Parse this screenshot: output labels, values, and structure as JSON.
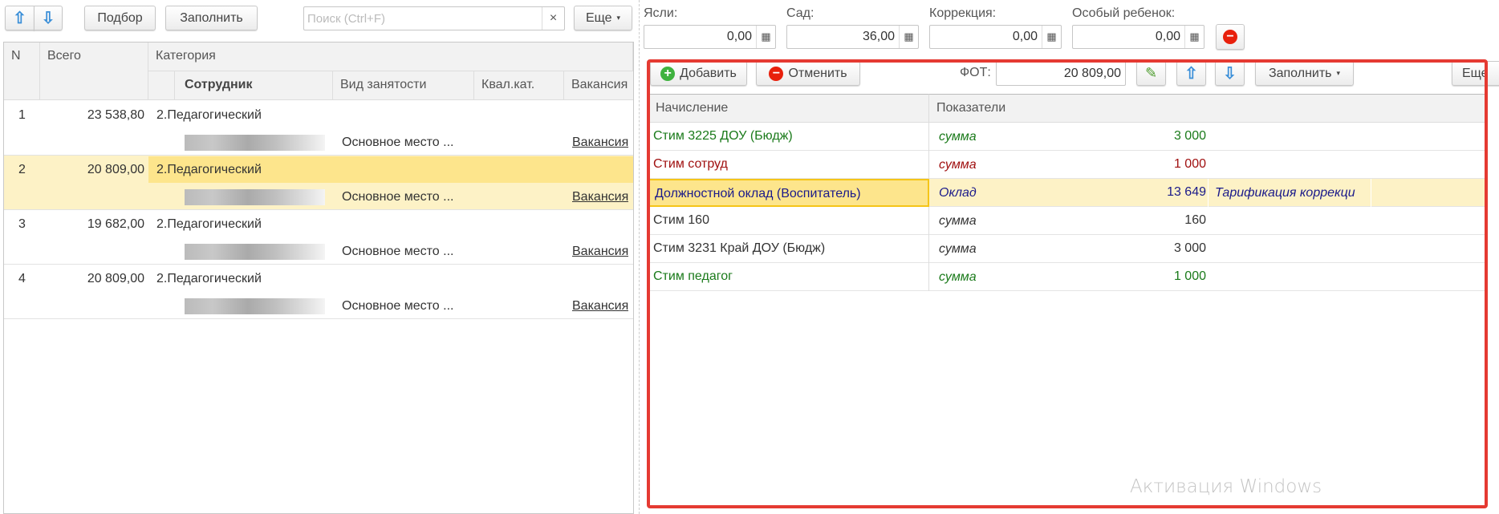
{
  "left": {
    "toolbar": {
      "pick": "Подбор",
      "fill": "Заполнить",
      "search_placeholder": "Поиск (Ctrl+F)",
      "clear": "×",
      "more": "Еще"
    },
    "columns": {
      "n": "N",
      "total": "Всего",
      "category": "Категория",
      "employee": "Сотрудник",
      "employment": "Вид занятости",
      "qual": "Квал.кат.",
      "vacancy": "Вакансия"
    },
    "rows": [
      {
        "n": "1",
        "total": "23 538,80",
        "category": "2.Педагогический",
        "employment": "Основное место ...",
        "vacancy": "Вакансия"
      },
      {
        "n": "2",
        "total": "20 809,00",
        "category": "2.Педагогический",
        "employment": "Основное место ...",
        "vacancy": "Вакансия",
        "selected": true
      },
      {
        "n": "3",
        "total": "19 682,00",
        "category": "2.Педагогический",
        "employment": "Основное место ...",
        "vacancy": "Вакансия"
      },
      {
        "n": "4",
        "total": "20 809,00",
        "category": "2.Педагогический",
        "employment": "Основное место ...",
        "vacancy": "Вакансия"
      }
    ]
  },
  "right": {
    "fields": [
      {
        "label": "Ясли:",
        "value": "0,00"
      },
      {
        "label": "Сад:",
        "value": "36,00"
      },
      {
        "label": "Коррекция:",
        "value": "0,00"
      },
      {
        "label": "Особый ребенок:",
        "value": "0,00"
      }
    ],
    "toolbar": {
      "add": "Добавить",
      "cancel": "Отменить",
      "fot_label": "ФОТ:",
      "fot_value": "20 809,00",
      "fill": "Заполнить",
      "more": "Еще"
    },
    "columns": {
      "accrual": "Начисление",
      "indicators": "Показатели"
    },
    "rows": [
      {
        "name": "Стим 3225 ДОУ (Бюдж)",
        "ind": "сумма",
        "value": "3 000",
        "extra": "",
        "color": "#1a7a1a"
      },
      {
        "name": "Стим сотруд",
        "ind": "сумма",
        "value": "1 000",
        "extra": "",
        "color": "#a01010"
      },
      {
        "name": "Должностной оклад (Воспитатель)",
        "ind": "Оклад",
        "value": "13 649",
        "extra": "Тарификация коррекци",
        "color": "#1a1a8a",
        "selected": true
      },
      {
        "name": "Стим 160",
        "ind": "сумма",
        "value": "160",
        "extra": "",
        "color": "#333333"
      },
      {
        "name": "Стим 3231  Край ДОУ (Бюдж)",
        "ind": "сумма",
        "value": "3 000",
        "extra": "",
        "color": "#333333"
      },
      {
        "name": "Стим педагог",
        "ind": "сумма",
        "value": "1 000",
        "extra": "",
        "color": "#1a7a1a"
      }
    ]
  },
  "watermark": "Активация Windows",
  "colors": {
    "selection": "#fde58c",
    "selection_light": "#fdf2c6",
    "highlight_box": "#e53a32",
    "arrow": "#3b8fd8"
  }
}
